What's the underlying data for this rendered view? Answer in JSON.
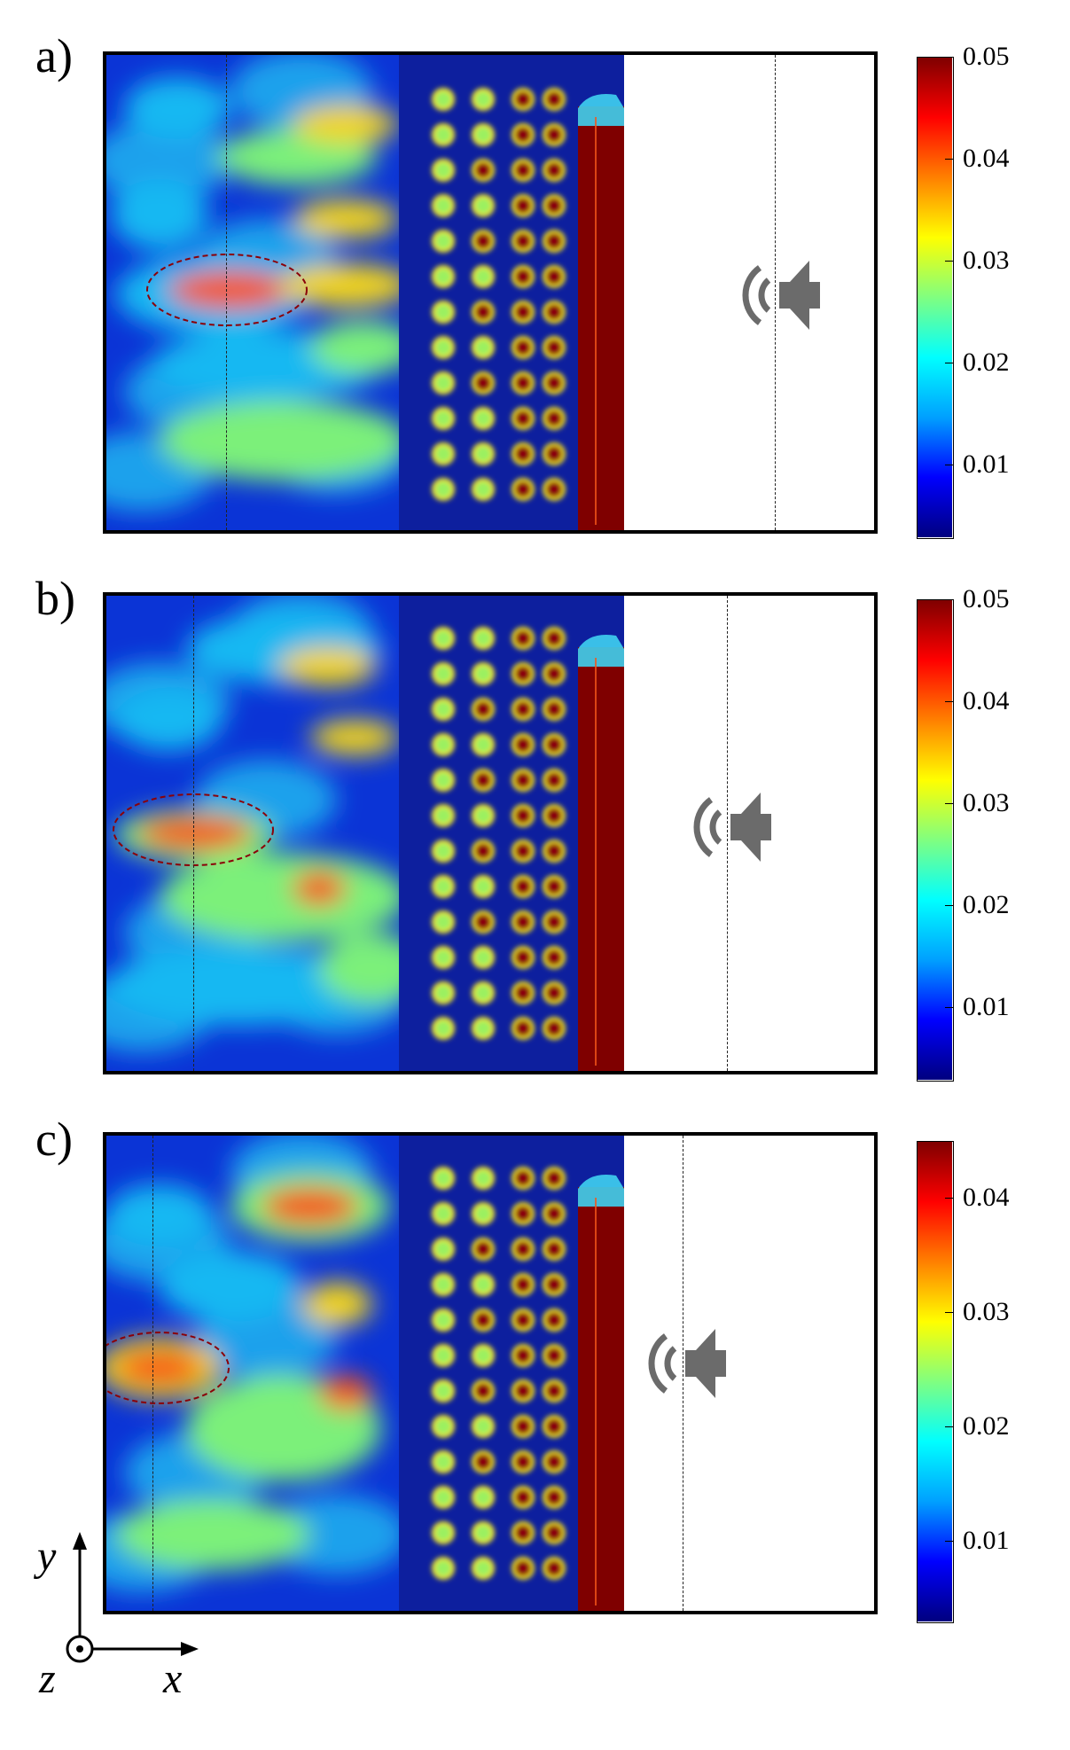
{
  "chart_data": [
    {
      "type": "heatmap",
      "panel_label": "a)",
      "colorbar": {
        "ticks": [
          "0.05",
          "0.04",
          "0.03",
          "0.02",
          "0.01"
        ],
        "range": [
          0.003,
          0.05
        ]
      },
      "highlight": "dashed ellipse around hotspot in left region",
      "icon": "speaker-icon"
    },
    {
      "type": "heatmap",
      "panel_label": "b)",
      "colorbar": {
        "ticks": [
          "0.05",
          "0.04",
          "0.03",
          "0.02",
          "0.01"
        ],
        "range": [
          0.003,
          0.05
        ]
      },
      "highlight": "dashed ellipse around hotspot in left region",
      "icon": "speaker-icon"
    },
    {
      "type": "heatmap",
      "panel_label": "c)",
      "colorbar": {
        "ticks": [
          "0.04",
          "0.03",
          "0.02",
          "0.01"
        ],
        "range": [
          0.003,
          0.045
        ]
      },
      "highlight": "dashed ellipse around hotspot at left edge",
      "icon": "speaker-icon"
    }
  ],
  "axes_indicator": {
    "y": "y",
    "x": "x",
    "z": "z"
  },
  "colormap": [
    "#00007f",
    "#0000ff",
    "#00a0ff",
    "#00ffff",
    "#80ff80",
    "#ffff00",
    "#ff8000",
    "#ff0000",
    "#7f0000"
  ],
  "icons": {
    "speaker": "speaker-icon"
  }
}
